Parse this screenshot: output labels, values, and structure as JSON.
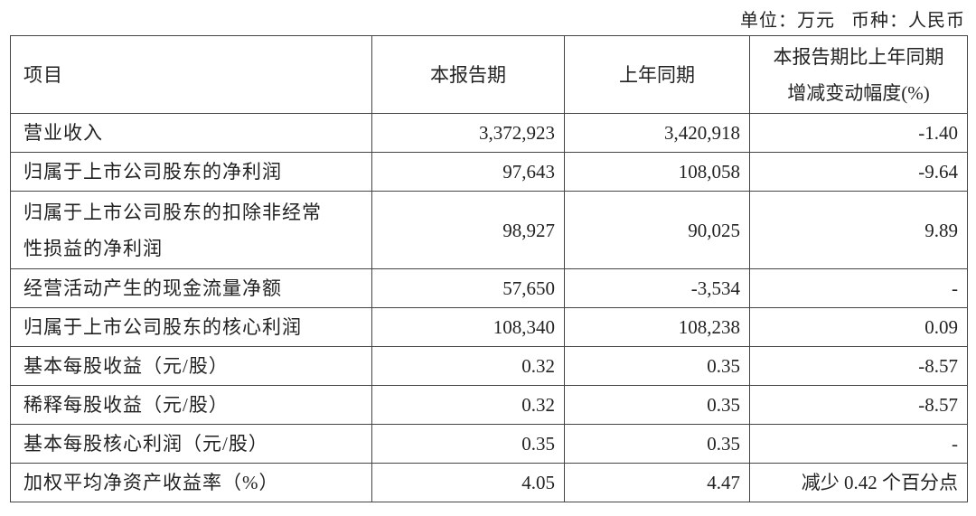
{
  "unit_note": {
    "unit": "单位：万元",
    "currency": "币种：人民币"
  },
  "table": {
    "headers": [
      "项目",
      "本报告期",
      "上年同期",
      "本报告期比上年同期",
      "增减变动幅度(%)"
    ],
    "rows": [
      {
        "item": "营业收入",
        "current": "3,372,923",
        "prior": "3,420,918",
        "change": "-1.40"
      },
      {
        "item": "归属于上市公司股东的净利润",
        "current": "97,643",
        "prior": "108,058",
        "change": "-9.64"
      },
      {
        "item": "归属于上市公司股东的扣除非经常",
        "item2": "性损益的净利润",
        "current": "98,927",
        "prior": "90,025",
        "change": "9.89"
      },
      {
        "item": "经营活动产生的现金流量净额",
        "current": "57,650",
        "prior": "-3,534",
        "change": "-"
      },
      {
        "item": "归属于上市公司股东的核心利润",
        "current": "108,340",
        "prior": "108,238",
        "change": "0.09"
      },
      {
        "item": "基本每股收益（元/股）",
        "current": "0.32",
        "prior": "0.35",
        "change": "-8.57"
      },
      {
        "item": "稀释每股收益（元/股）",
        "current": "0.32",
        "prior": "0.35",
        "change": "-8.57"
      },
      {
        "item": "基本每股核心利润（元/股）",
        "current": "0.35",
        "prior": "0.35",
        "change": "-"
      },
      {
        "item": "加权平均净资产收益率（%）",
        "current": "4.05",
        "prior": "4.47",
        "change": "减少 0.42 个百分点"
      }
    ]
  }
}
